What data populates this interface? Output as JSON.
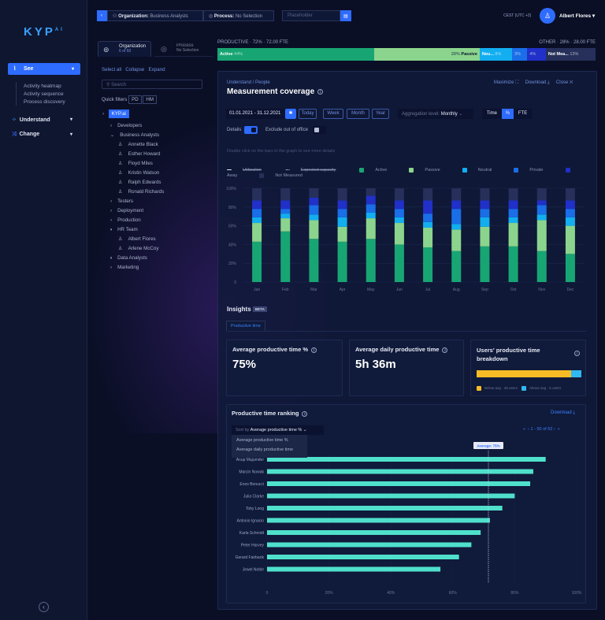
{
  "colors": {
    "active": "#18a574",
    "passive": "#8bd48d",
    "neutral": "#12aef0",
    "private": "#1a6ee8",
    "away": "#2030c8",
    "not_measured": "#26305a",
    "accent": "#2e6bff",
    "rank_bar": "#4fe0cc",
    "below": "#f7bc25",
    "above": "#30b8f0"
  },
  "sidebar": {
    "logo": "KYP",
    "logo_sup": "AI",
    "see": {
      "label": "See",
      "icon": "see-icon",
      "items": [
        "Activity heatmap",
        "Activity sequence",
        "Process discovery"
      ]
    },
    "understand": {
      "label": "Understand",
      "icon": "understand-icon"
    },
    "change": {
      "label": "Change",
      "icon": "change-icon"
    }
  },
  "topbar": {
    "org_label": "Organization:",
    "org_value": "Business Analysts",
    "process_label": "Process:",
    "process_value": "No Selection",
    "search_placeholder": "Placeholder",
    "timezone": "CEST (UTC +2)",
    "user": "Albert Flores"
  },
  "tree": {
    "tabs": [
      {
        "label": "Organization",
        "sub": "6 of 60"
      },
      {
        "label": "Process",
        "sub": "No Selection"
      }
    ],
    "actions": [
      "Select all",
      "Collapse",
      "Expand"
    ],
    "search_placeholder": "Search",
    "quick_filters_label": "Quick filters",
    "quick_filters": [
      "PD",
      "HM"
    ],
    "root": "KYP.ai",
    "nodes": [
      {
        "label": "Developers",
        "type": "group",
        "level": 1
      },
      {
        "label": "Business Analysts",
        "type": "group-open",
        "level": 1
      },
      {
        "label": "Annette Black",
        "type": "user",
        "level": 2
      },
      {
        "label": "Esther Howard",
        "type": "user",
        "level": 2
      },
      {
        "label": "Floyd Miles",
        "type": "user",
        "level": 2
      },
      {
        "label": "Kristin Watson",
        "type": "user",
        "level": 2
      },
      {
        "label": "Ralph Edwards",
        "type": "user",
        "level": 2
      },
      {
        "label": "Ronald Richards",
        "type": "user",
        "level": 2
      },
      {
        "label": "Testers",
        "type": "group",
        "level": 1
      },
      {
        "label": "Deployment",
        "type": "group",
        "level": 1
      },
      {
        "label": "Production",
        "type": "group",
        "level": 1
      },
      {
        "label": "HR Team",
        "type": "group-bold",
        "level": 1
      },
      {
        "label": "Albert Flores",
        "type": "user",
        "level": 2
      },
      {
        "label": "Arlene McCoy",
        "type": "user",
        "level": 2
      },
      {
        "label": "Data Analysts",
        "type": "group-bold",
        "level": 1
      },
      {
        "label": "Marketing",
        "type": "group",
        "level": 1
      }
    ]
  },
  "summary": {
    "productive": "PRODUCTIVE",
    "productive_pct": "72%",
    "productive_fte": "72.00 FTE",
    "other": "OTHER",
    "other_pct": "28%",
    "other_fte": "28.00 FTE",
    "segments": [
      {
        "label": "Active",
        "pct": "44%",
        "value": 44
      },
      {
        "label": "Passive",
        "pct": "29%",
        "value": 29
      },
      {
        "label": "Neu...",
        "pct": "8%",
        "value": 8
      },
      {
        "label": "",
        "pct": "3%",
        "value": 3
      },
      {
        "label": "",
        "pct": "4%",
        "value": 4
      },
      {
        "label": "Not Mea...",
        "pct": "13%",
        "value": 13
      }
    ]
  },
  "panel": {
    "breadcrumb": "Understand / People",
    "title": "Measurement coverage",
    "maximize": "Maximize",
    "download": "Download",
    "close": "Close",
    "date_range": "01.01.2021 - 31.12.2021",
    "periods": [
      "Today",
      "Week",
      "Month",
      "Year"
    ],
    "aggregation_label": "Aggregation level:",
    "aggregation_value": "Monthly",
    "units": [
      "Time",
      "%",
      "FTE"
    ],
    "details": "Details",
    "exclude": "Exclude out of office",
    "hint": "Double click on the bars in the graph to see more details"
  },
  "chart_data": {
    "type": "bar",
    "stacked": true,
    "categories": [
      "Jan",
      "Feb",
      "Mar",
      "Apr",
      "May",
      "Jun",
      "Jul",
      "Aug",
      "Sep",
      "Oct",
      "Nov",
      "Dec"
    ],
    "yticks": [
      "0",
      "20%",
      "40%",
      "60%",
      "80%",
      "100%"
    ],
    "ylim": [
      0,
      100
    ],
    "legend_lines": [
      "Utilization",
      "Expected capacity"
    ],
    "series": [
      {
        "name": "Active",
        "values": [
          43,
          54,
          46,
          43,
          46,
          40,
          37,
          33,
          38,
          38,
          33,
          30
        ]
      },
      {
        "name": "Passive",
        "values": [
          20,
          14,
          20,
          16,
          22,
          23,
          21,
          23,
          21,
          25,
          33,
          30
        ]
      },
      {
        "name": "Neutral",
        "values": [
          6,
          5,
          6,
          10,
          6,
          6,
          6,
          6,
          10,
          6,
          6,
          9
        ]
      },
      {
        "name": "Private",
        "values": [
          9,
          5,
          10,
          9,
          9,
          9,
          9,
          16,
          9,
          9,
          10,
          9
        ]
      },
      {
        "name": "Away",
        "values": [
          9,
          9,
          8,
          9,
          9,
          9,
          14,
          9,
          9,
          9,
          5,
          9
        ]
      },
      {
        "name": "Not Measured",
        "values": [
          13,
          13,
          10,
          13,
          8,
          13,
          13,
          13,
          13,
          13,
          13,
          13
        ]
      }
    ]
  },
  "insights": {
    "title": "Insights",
    "badge": "BETA",
    "tab": "Productive time",
    "avg_pct_title": "Average productive time %",
    "avg_pct": "75%",
    "avg_daily_title": "Average daily productive time",
    "avg_daily": "5h 36m",
    "breakdown_title": "Users' productive time breakdown",
    "below": "Below avg · 48 users",
    "above": "Above avg · 5 users",
    "below_count": 48,
    "above_count": 5
  },
  "ranking": {
    "title": "Productive time ranking",
    "download": "Download",
    "sort_prefix": "Sort by",
    "sort_value": "Average productive time %",
    "options": [
      "Average productive time %",
      "Average daily productive time"
    ],
    "pagination": "1 - 50 of 53",
    "average_label": "Average: 75%",
    "average": 75,
    "xticks": [
      "0",
      "20%",
      "40%",
      "60%",
      "80%",
      "100%"
    ],
    "rows": [
      {
        "name": "Anup Majumder",
        "value": 90
      },
      {
        "name": "Marcin Nowak",
        "value": 86
      },
      {
        "name": "Enzo Bonucci",
        "value": 85
      },
      {
        "name": "Julia Clarke",
        "value": 80
      },
      {
        "name": "Toby Long",
        "value": 76
      },
      {
        "name": "Antonio Ignacio",
        "value": 72
      },
      {
        "name": "Karla Schmidt",
        "value": 69
      },
      {
        "name": "Peter Harvey",
        "value": 66
      },
      {
        "name": "Gerard Fairbank",
        "value": 62
      },
      {
        "name": "Jewel Noble",
        "value": 56
      }
    ]
  }
}
